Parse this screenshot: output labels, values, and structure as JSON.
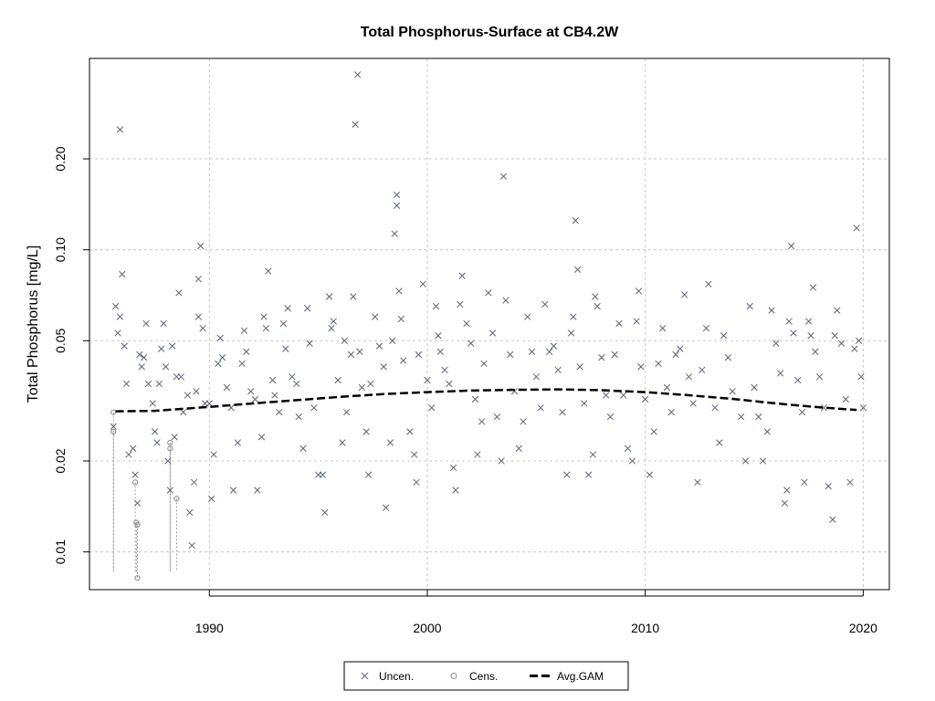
{
  "chart_data": {
    "type": "scatter",
    "title": "Total Phosphorus-Surface at CB4.2W",
    "ylabel": "Total Phosphorus [mg/L]",
    "xlabel": "",
    "y_scale": "log",
    "xlim": [
      1984.5,
      2021.2
    ],
    "ylim": [
      0.0075,
      0.43
    ],
    "x_ticks": [
      1990,
      2000,
      2010,
      2020
    ],
    "y_ticks": [
      0.01,
      0.02,
      0.05,
      0.1,
      0.2
    ],
    "y_tick_labels": [
      "0.01",
      "0.02",
      "0.05",
      "0.10",
      "0.20"
    ],
    "grid": true,
    "legend": {
      "placement": "bottom",
      "entries": [
        "Uncen.",
        "Cens.",
        "Avg.GAM"
      ]
    },
    "colors": {
      "uncensored": "#5a6478",
      "censored": "#8a8a8a",
      "gam": "#000000",
      "grid": "#c8c8c8"
    },
    "series": [
      {
        "name": "Uncen.",
        "marker": "x",
        "points": [
          [
            1985.6,
            0.026
          ],
          [
            1985.7,
            0.065
          ],
          [
            1985.8,
            0.053
          ],
          [
            1985.9,
            0.06
          ],
          [
            1985.9,
            0.25
          ],
          [
            1986.0,
            0.083
          ],
          [
            1986.1,
            0.048
          ],
          [
            1986.2,
            0.036
          ],
          [
            1986.3,
            0.021
          ],
          [
            1986.5,
            0.022
          ],
          [
            1986.6,
            0.018
          ],
          [
            1986.7,
            0.0145
          ],
          [
            1986.8,
            0.045
          ],
          [
            1986.9,
            0.041
          ],
          [
            1987.0,
            0.044
          ],
          [
            1987.1,
            0.057
          ],
          [
            1987.2,
            0.036
          ],
          [
            1987.4,
            0.031
          ],
          [
            1987.5,
            0.025
          ],
          [
            1987.6,
            0.023
          ],
          [
            1987.7,
            0.036
          ],
          [
            1987.8,
            0.047
          ],
          [
            1987.9,
            0.057
          ],
          [
            1988.0,
            0.041
          ],
          [
            1988.1,
            0.02
          ],
          [
            1988.2,
            0.016
          ],
          [
            1988.3,
            0.048
          ],
          [
            1988.4,
            0.024
          ],
          [
            1988.5,
            0.038
          ],
          [
            1988.6,
            0.072
          ],
          [
            1988.7,
            0.038
          ],
          [
            1988.8,
            0.029
          ],
          [
            1989.0,
            0.033
          ],
          [
            1989.1,
            0.0135
          ],
          [
            1989.2,
            0.0105
          ],
          [
            1989.3,
            0.017
          ],
          [
            1989.4,
            0.034
          ],
          [
            1989.5,
            0.06
          ],
          [
            1989.5,
            0.08
          ],
          [
            1989.6,
            0.103
          ],
          [
            1989.7,
            0.055
          ],
          [
            1989.8,
            0.031
          ],
          [
            1990.0,
            0.031
          ],
          [
            1990.1,
            0.015
          ],
          [
            1990.2,
            0.021
          ],
          [
            1990.4,
            0.042
          ],
          [
            1990.5,
            0.051
          ],
          [
            1990.6,
            0.044
          ],
          [
            1990.8,
            0.035
          ],
          [
            1991.0,
            0.03
          ],
          [
            1991.1,
            0.016
          ],
          [
            1991.3,
            0.023
          ],
          [
            1991.5,
            0.042
          ],
          [
            1991.6,
            0.054
          ],
          [
            1991.7,
            0.046
          ],
          [
            1991.9,
            0.034
          ],
          [
            1992.1,
            0.032
          ],
          [
            1992.2,
            0.016
          ],
          [
            1992.4,
            0.024
          ],
          [
            1992.5,
            0.06
          ],
          [
            1992.6,
            0.055
          ],
          [
            1992.7,
            0.085
          ],
          [
            1992.9,
            0.037
          ],
          [
            1993.0,
            0.033
          ],
          [
            1993.2,
            0.029
          ],
          [
            1993.4,
            0.057
          ],
          [
            1993.5,
            0.047
          ],
          [
            1993.6,
            0.064
          ],
          [
            1993.8,
            0.038
          ],
          [
            1994.0,
            0.036
          ],
          [
            1994.1,
            0.028
          ],
          [
            1994.3,
            0.022
          ],
          [
            1994.5,
            0.064
          ],
          [
            1994.6,
            0.049
          ],
          [
            1994.8,
            0.03
          ],
          [
            1995.0,
            0.018
          ],
          [
            1995.2,
            0.018
          ],
          [
            1995.3,
            0.0135
          ],
          [
            1995.5,
            0.07
          ],
          [
            1995.6,
            0.055
          ],
          [
            1995.7,
            0.058
          ],
          [
            1995.9,
            0.037
          ],
          [
            1996.1,
            0.023
          ],
          [
            1996.2,
            0.05
          ],
          [
            1996.3,
            0.029
          ],
          [
            1996.5,
            0.045
          ],
          [
            1996.6,
            0.07
          ],
          [
            1996.7,
            0.26
          ],
          [
            1996.8,
            0.38
          ],
          [
            1996.9,
            0.046
          ],
          [
            1997.0,
            0.035
          ],
          [
            1997.2,
            0.025
          ],
          [
            1997.3,
            0.018
          ],
          [
            1997.4,
            0.036
          ],
          [
            1997.6,
            0.06
          ],
          [
            1997.8,
            0.048
          ],
          [
            1998.0,
            0.041
          ],
          [
            1998.1,
            0.014
          ],
          [
            1998.3,
            0.023
          ],
          [
            1998.4,
            0.05
          ],
          [
            1998.5,
            0.113
          ],
          [
            1998.6,
            0.14
          ],
          [
            1998.6,
            0.152
          ],
          [
            1998.7,
            0.073
          ],
          [
            1998.8,
            0.059
          ],
          [
            1998.9,
            0.043
          ],
          [
            1999.2,
            0.025
          ],
          [
            1999.4,
            0.021
          ],
          [
            1999.5,
            0.017
          ],
          [
            1999.6,
            0.045
          ],
          [
            1999.8,
            0.077
          ],
          [
            2000.0,
            0.037
          ],
          [
            2000.2,
            0.03
          ],
          [
            2000.4,
            0.065
          ],
          [
            2000.5,
            0.052
          ],
          [
            2000.6,
            0.046
          ],
          [
            2000.8,
            0.04
          ],
          [
            2001.0,
            0.036
          ],
          [
            2001.2,
            0.019
          ],
          [
            2001.3,
            0.016
          ],
          [
            2001.5,
            0.066
          ],
          [
            2001.6,
            0.082
          ],
          [
            2001.8,
            0.057
          ],
          [
            2002.0,
            0.049
          ],
          [
            2002.2,
            0.032
          ],
          [
            2002.3,
            0.021
          ],
          [
            2002.5,
            0.027
          ],
          [
            2002.6,
            0.042
          ],
          [
            2002.8,
            0.072
          ],
          [
            2003.0,
            0.053
          ],
          [
            2003.2,
            0.028
          ],
          [
            2003.4,
            0.02
          ],
          [
            2003.5,
            0.175
          ],
          [
            2003.6,
            0.068
          ],
          [
            2003.8,
            0.045
          ],
          [
            2004.0,
            0.034
          ],
          [
            2004.2,
            0.022
          ],
          [
            2004.4,
            0.027
          ],
          [
            2004.6,
            0.06
          ],
          [
            2004.8,
            0.046
          ],
          [
            2005.0,
            0.038
          ],
          [
            2005.2,
            0.03
          ],
          [
            2005.4,
            0.066
          ],
          [
            2005.6,
            0.046
          ],
          [
            2005.8,
            0.048
          ],
          [
            2006.0,
            0.04
          ],
          [
            2006.2,
            0.029
          ],
          [
            2006.4,
            0.018
          ],
          [
            2006.6,
            0.053
          ],
          [
            2006.7,
            0.06
          ],
          [
            2006.8,
            0.125
          ],
          [
            2006.9,
            0.086
          ],
          [
            2007.0,
            0.041
          ],
          [
            2007.2,
            0.031
          ],
          [
            2007.4,
            0.018
          ],
          [
            2007.6,
            0.021
          ],
          [
            2007.7,
            0.07
          ],
          [
            2007.8,
            0.065
          ],
          [
            2008.0,
            0.044
          ],
          [
            2008.2,
            0.033
          ],
          [
            2008.4,
            0.028
          ],
          [
            2008.6,
            0.045
          ],
          [
            2008.8,
            0.057
          ],
          [
            2009.0,
            0.033
          ],
          [
            2009.2,
            0.022
          ],
          [
            2009.4,
            0.02
          ],
          [
            2009.6,
            0.058
          ],
          [
            2009.7,
            0.073
          ],
          [
            2009.8,
            0.041
          ],
          [
            2010.0,
            0.032
          ],
          [
            2010.2,
            0.018
          ],
          [
            2010.4,
            0.025
          ],
          [
            2010.6,
            0.042
          ],
          [
            2010.8,
            0.055
          ],
          [
            2011.0,
            0.035
          ],
          [
            2011.2,
            0.029
          ],
          [
            2011.4,
            0.045
          ],
          [
            2011.6,
            0.047
          ],
          [
            2011.8,
            0.071
          ],
          [
            2012.0,
            0.038
          ],
          [
            2012.2,
            0.031
          ],
          [
            2012.4,
            0.017
          ],
          [
            2012.6,
            0.04
          ],
          [
            2012.8,
            0.055
          ],
          [
            2012.9,
            0.077
          ],
          [
            2013.2,
            0.03
          ],
          [
            2013.4,
            0.023
          ],
          [
            2013.6,
            0.052
          ],
          [
            2013.8,
            0.044
          ],
          [
            2014.0,
            0.034
          ],
          [
            2014.4,
            0.028
          ],
          [
            2014.6,
            0.02
          ],
          [
            2014.8,
            0.065
          ],
          [
            2015.0,
            0.035
          ],
          [
            2015.2,
            0.028
          ],
          [
            2015.4,
            0.02
          ],
          [
            2015.6,
            0.025
          ],
          [
            2015.8,
            0.063
          ],
          [
            2016.0,
            0.049
          ],
          [
            2016.2,
            0.039
          ],
          [
            2016.4,
            0.0145
          ],
          [
            2016.5,
            0.016
          ],
          [
            2016.6,
            0.058
          ],
          [
            2016.7,
            0.103
          ],
          [
            2016.8,
            0.053
          ],
          [
            2017.0,
            0.037
          ],
          [
            2017.2,
            0.029
          ],
          [
            2017.3,
            0.017
          ],
          [
            2017.5,
            0.058
          ],
          [
            2017.6,
            0.052
          ],
          [
            2017.7,
            0.075
          ],
          [
            2017.8,
            0.046
          ],
          [
            2018.0,
            0.038
          ],
          [
            2018.2,
            0.03
          ],
          [
            2018.4,
            0.0165
          ],
          [
            2018.6,
            0.0128
          ],
          [
            2018.7,
            0.052
          ],
          [
            2018.8,
            0.063
          ],
          [
            2019.0,
            0.049
          ],
          [
            2019.2,
            0.032
          ],
          [
            2019.4,
            0.017
          ],
          [
            2019.6,
            0.047
          ],
          [
            2019.7,
            0.118
          ],
          [
            2019.8,
            0.05
          ],
          [
            2019.9,
            0.038
          ],
          [
            2020.0,
            0.03
          ]
        ]
      },
      {
        "name": "Cens.",
        "marker": "o",
        "points": [
          [
            1985.6,
            0.029
          ],
          [
            1985.6,
            0.025
          ],
          [
            1986.6,
            0.017
          ],
          [
            1986.65,
            0.0125
          ],
          [
            1986.7,
            0.0123
          ],
          [
            1986.7,
            0.0082
          ],
          [
            1988.2,
            0.022
          ],
          [
            1988.2,
            0.023
          ],
          [
            1988.5,
            0.015
          ]
        ]
      },
      {
        "name": "Avg.GAM",
        "marker": "dashed-line",
        "points": [
          [
            1985.7,
            0.0292
          ],
          [
            1987.5,
            0.0293
          ],
          [
            1990,
            0.0302
          ],
          [
            1992,
            0.031
          ],
          [
            1994,
            0.0318
          ],
          [
            1996,
            0.0326
          ],
          [
            1998,
            0.0333
          ],
          [
            2000,
            0.0338
          ],
          [
            2002,
            0.0342
          ],
          [
            2004,
            0.0344
          ],
          [
            2006,
            0.0345
          ],
          [
            2008,
            0.0343
          ],
          [
            2010,
            0.0338
          ],
          [
            2012,
            0.033
          ],
          [
            2014,
            0.0321
          ],
          [
            2016,
            0.031
          ],
          [
            2018,
            0.0301
          ],
          [
            2019.7,
            0.0295
          ]
        ]
      }
    ]
  }
}
